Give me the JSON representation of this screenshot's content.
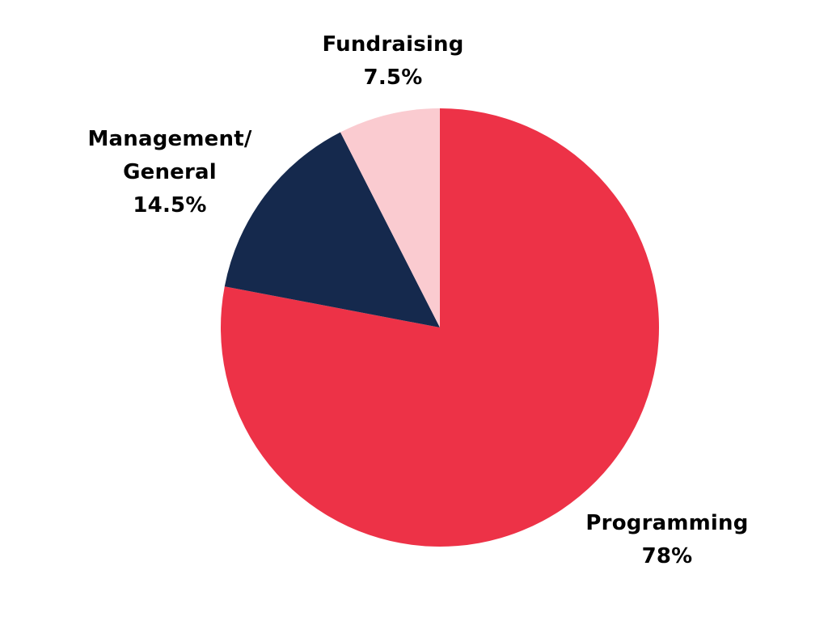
{
  "chart_data": {
    "type": "pie",
    "title": "",
    "slices": [
      {
        "label": "Programming",
        "value_label": "78%",
        "value": 78,
        "color": "#ED3247"
      },
      {
        "label": "Management/ General",
        "value_label": "14.5%",
        "value": 14.5,
        "color": "#15294D"
      },
      {
        "label": "Fundraising",
        "value_label": "7.5%",
        "value": 7.5,
        "color": "#FACBD0"
      }
    ],
    "start_angle_deg": 0,
    "direction": "clockwise",
    "legend": "none"
  },
  "labels": {
    "programming": {
      "name": "Programming",
      "value": "78%"
    },
    "management": {
      "line1": "Management/",
      "line2": "General",
      "value": "14.5%"
    },
    "fundraising": {
      "name": "Fundraising",
      "value": "7.5%"
    }
  }
}
